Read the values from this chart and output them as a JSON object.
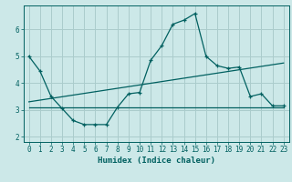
{
  "xlabel": "Humidex (Indice chaleur)",
  "bg_color": "#cce8e8",
  "line_color": "#006060",
  "grid_color": "#aacccc",
  "xlim": [
    -0.5,
    23.5
  ],
  "ylim": [
    1.8,
    6.9
  ],
  "xticks": [
    0,
    1,
    2,
    3,
    4,
    5,
    6,
    7,
    8,
    9,
    10,
    11,
    12,
    13,
    14,
    15,
    16,
    17,
    18,
    19,
    20,
    21,
    22,
    23
  ],
  "yticks": [
    2,
    3,
    4,
    5,
    6
  ],
  "line1_x": [
    0,
    1,
    2,
    3,
    4,
    5,
    6,
    7,
    8,
    9,
    10,
    11,
    12,
    13,
    14,
    15,
    16,
    17,
    18,
    19,
    20,
    21,
    22,
    23
  ],
  "line1_y": [
    5.0,
    4.45,
    3.5,
    3.05,
    2.6,
    2.45,
    2.45,
    2.45,
    3.1,
    3.6,
    3.65,
    4.85,
    5.4,
    6.2,
    6.35,
    6.6,
    5.0,
    4.65,
    4.55,
    4.6,
    3.5,
    3.6,
    3.15,
    3.15
  ],
  "line2_x": [
    0,
    23
  ],
  "line2_y": [
    3.1,
    3.1
  ],
  "line3_x": [
    0,
    23
  ],
  "line3_y": [
    3.3,
    4.75
  ]
}
